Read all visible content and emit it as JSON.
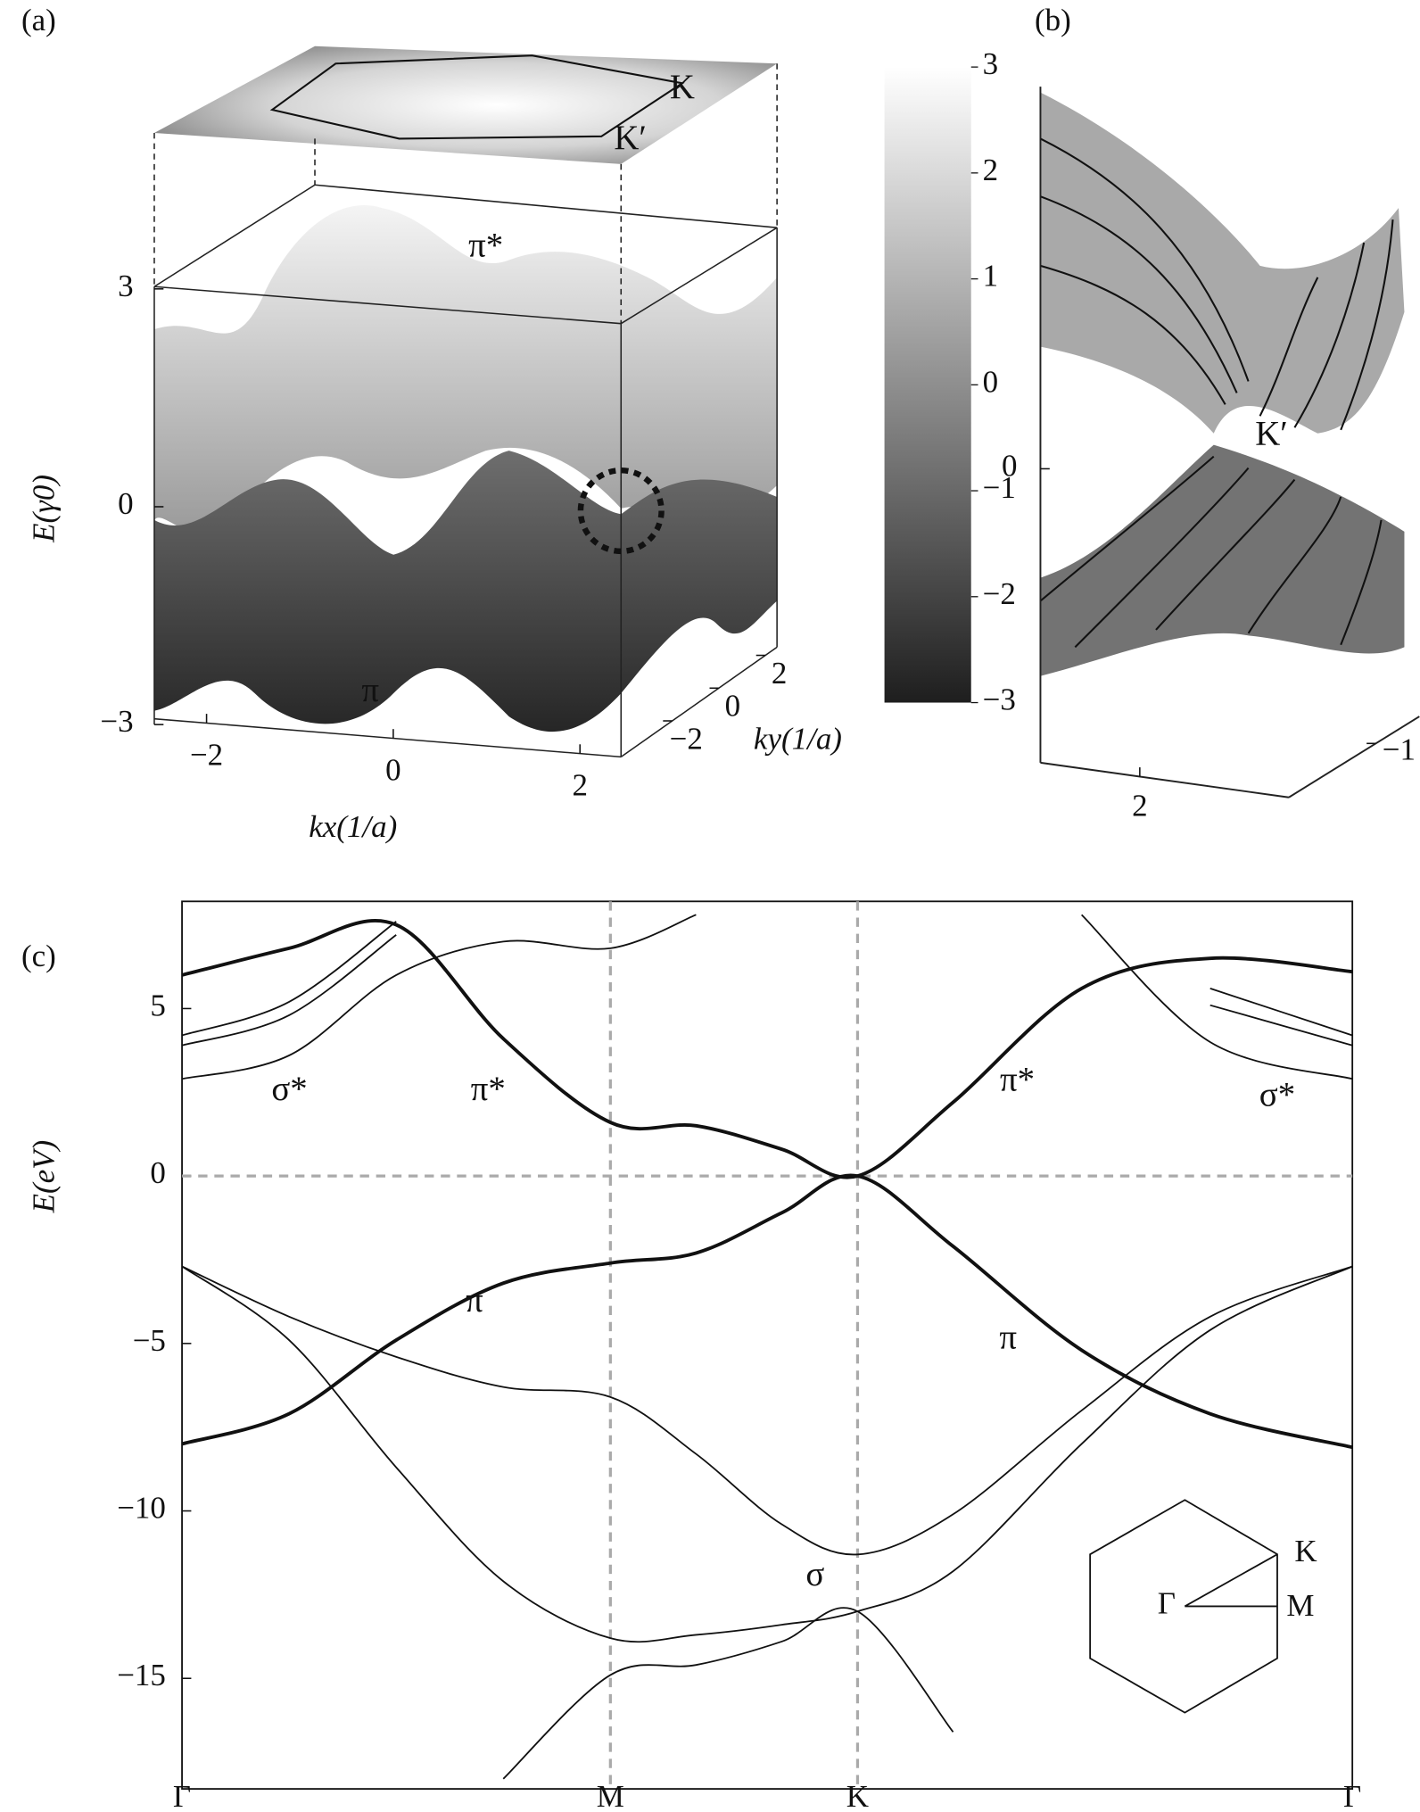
{
  "chart_data": [
    {
      "type": "surface",
      "label": "(a)",
      "zlabel": "E(γ0)",
      "xlabel": "kx(1/a)",
      "ylabel": "ky(1/a)",
      "zlim": [
        -3,
        3
      ],
      "zticks": [
        3,
        0,
        {
          "value": -3,
          "label": "−3"
        }
      ],
      "xlim": [
        -2.56,
        2.44
      ],
      "xticks": [
        {
          "value": -2,
          "label": "−2"
        },
        0,
        2
      ],
      "ylim": [
        -4.2,
        2.5
      ],
      "yticks": [
        2,
        0,
        {
          "value": -2,
          "label": "−2"
        }
      ],
      "colorbar": {
        "lim": [
          -3,
          3
        ],
        "colormap": [
          "#1e1e1e",
          "#ffffff"
        ],
        "ticks": [
          3,
          2,
          1,
          0,
          {
            "value": -1,
            "label": "−1"
          },
          {
            "value": -2,
            "label": "−2"
          },
          {
            "value": -3,
            "label": "−3"
          }
        ]
      },
      "annotations": [
        "π*",
        "π",
        "K",
        "K′"
      ]
    },
    {
      "type": "surface",
      "label": "(b)",
      "zlim": [
        -1,
        1.3
      ],
      "zticks": [
        0
      ],
      "xlim": [
        1.6,
        2.6
      ],
      "xticks": [
        2
      ],
      "ylim": [
        -1.5,
        -0.75
      ],
      "yticks": [
        {
          "value": -1,
          "label": "−1"
        }
      ],
      "annotations": [
        "K′"
      ]
    },
    {
      "type": "line",
      "label": "(c)",
      "ylabel": "E(eV)",
      "x": [
        0,
        0.25,
        0.5,
        0.75,
        1,
        1.2,
        1.4,
        1.577,
        1.8,
        2.1,
        2.4,
        2.732
      ],
      "xlim": [
        0,
        2.732
      ],
      "xticks": [
        {
          "value": 0,
          "label": "Γ"
        },
        {
          "value": 1,
          "label": "M"
        },
        {
          "value": 1.577,
          "label": "K"
        },
        {
          "value": 2.732,
          "label": "Γ"
        }
      ],
      "ylim": [
        -18.3,
        8.2
      ],
      "yticks": [
        5,
        0,
        {
          "value": -5,
          "label": "−5"
        },
        {
          "value": -10,
          "label": "−10"
        },
        {
          "value": -15,
          "label": "−15"
        }
      ],
      "grid_x": true,
      "zero_line": true,
      "series": [
        {
          "color": "#111111",
          "line_width": 3,
          "values": [
            6.0,
            6.8,
            7.5,
            4.1,
            1.6,
            1.5,
            0.8,
            0,
            2.2,
            5.6,
            6.5,
            6.1
          ]
        },
        {
          "color": "#111111",
          "line_width": 3,
          "values": [
            -8.0,
            -7.1,
            -4.9,
            -3.2,
            -2.6,
            -2.3,
            -1.1,
            0,
            -2.1,
            -5.2,
            -7.1,
            -8.1
          ]
        },
        {
          "color": "#111111",
          "line_width": 1.4,
          "values": [
            2.9,
            3.6,
            6.0,
            7.0,
            6.8,
            7.8,
            null,
            null,
            null,
            7.8,
            4.0,
            2.9
          ]
        },
        {
          "color": "#111111",
          "line_width": 1.4,
          "values": [
            3.9,
            4.8,
            7.2,
            null,
            null,
            null,
            null,
            null,
            null,
            null,
            5.1,
            3.9
          ]
        },
        {
          "color": "#111111",
          "line_width": 1.4,
          "values": [
            4.2,
            5.2,
            7.6,
            null,
            null,
            null,
            null,
            null,
            null,
            null,
            5.6,
            4.2
          ]
        },
        {
          "color": "#111111",
          "line_width": 1.4,
          "values": [
            -2.7,
            -4.2,
            -5.4,
            -6.3,
            -6.6,
            -8.3,
            -10.4,
            -11.3,
            -10.1,
            -7.0,
            -4.2,
            -2.7
          ]
        },
        {
          "color": "#111111",
          "line_width": 1.4,
          "values": [
            -2.7,
            -4.9,
            -8.7,
            -12.1,
            -13.8,
            -13.7,
            -13.4,
            -13.0,
            -11.8,
            -8.0,
            -4.6,
            -2.7
          ]
        },
        {
          "color": "#111111",
          "line_width": 1.4,
          "values": [
            null,
            null,
            null,
            -18.0,
            -14.9,
            -14.6,
            -13.9,
            -13.0,
            -16.6,
            null,
            null,
            null
          ]
        }
      ],
      "annotations": [
        "σ*",
        "π*",
        "π*",
        "σ*",
        "π",
        "π",
        "σ"
      ],
      "inset": {
        "labels": [
          "K",
          "Γ",
          "M"
        ]
      }
    }
  ]
}
